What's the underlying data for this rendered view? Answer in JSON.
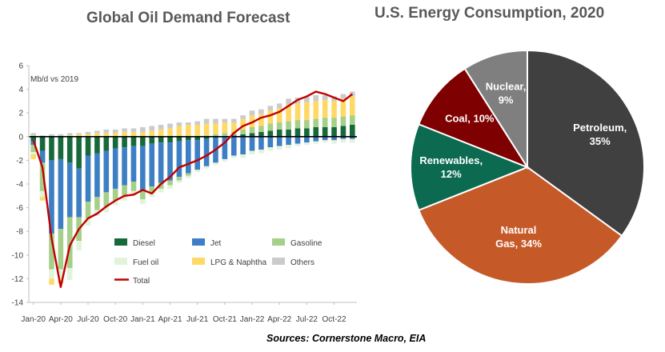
{
  "titles": {
    "left": "Global Oil Demand Forecast",
    "right": "U.S. Energy Consumption, 2020"
  },
  "sources": "Sources: Cornerstone Macro, EIA",
  "chart_data": [
    {
      "type": "bar",
      "stacked": true,
      "title": "Global Oil Demand Forecast",
      "unit_label": "Mb/d vs 2019",
      "ylim": [
        -14,
        6
      ],
      "yticks": [
        "6",
        "4",
        "2",
        "0",
        "-2",
        "-4",
        "-6",
        "-8",
        "-10",
        "-12",
        "-14"
      ],
      "x_tick_labels": [
        "Jan-20",
        "Apr-20",
        "Jul-20",
        "Oct-20",
        "Jan-21",
        "Apr-21",
        "Jul-21",
        "Oct-21",
        "Jan-22",
        "Apr-22",
        "Jul-22",
        "Oct-22"
      ],
      "x_tick_every": 3,
      "n_months": 36,
      "grid": false,
      "legend_position": "bottom-right",
      "colors": {
        "Diesel": "#17693a",
        "Jet": "#3d7fc4",
        "Gasoline": "#a6cf8a",
        "Fuel oil": "#e3f3da",
        "LPG & Naphtha": "#ffd966",
        "Others": "#cbcbcb",
        "Total": "#c00000"
      },
      "series": [
        {
          "name": "Diesel",
          "values": [
            -0.4,
            -1.2,
            -2.0,
            -1.9,
            -2.2,
            -2.7,
            -1.6,
            -1.4,
            -1.2,
            -1.0,
            -0.9,
            -0.8,
            -0.8,
            -0.6,
            -0.5,
            -0.5,
            -0.4,
            -0.3,
            -0.3,
            -0.2,
            -0.1,
            0.0,
            0.1,
            0.2,
            0.3,
            0.4,
            0.5,
            0.6,
            0.6,
            0.7,
            0.7,
            0.8,
            0.8,
            0.8,
            0.9,
            1.0
          ]
        },
        {
          "name": "Jet",
          "values": [
            -0.3,
            -1.0,
            -6.2,
            -5.9,
            -4.6,
            -4.1,
            -3.9,
            -3.7,
            -3.5,
            -3.4,
            -3.2,
            -3.0,
            -3.8,
            -3.6,
            -3.4,
            -3.2,
            -3.0,
            -2.8,
            -2.5,
            -2.3,
            -2.1,
            -1.9,
            -1.6,
            -1.5,
            -1.2,
            -1.1,
            -0.9,
            -0.8,
            -0.7,
            -0.6,
            -0.5,
            -0.4,
            -0.3,
            -0.3,
            -0.2,
            -0.2
          ]
        },
        {
          "name": "Gasoline",
          "values": [
            -0.6,
            -2.4,
            -3.0,
            -3.4,
            -4.3,
            -2.0,
            -1.4,
            -1.1,
            -1.2,
            -1.0,
            -0.9,
            -0.8,
            -0.7,
            -0.6,
            -0.5,
            -0.4,
            -0.3,
            -0.2,
            0.0,
            0.1,
            0.2,
            0.3,
            0.3,
            0.4,
            0.5,
            0.5,
            0.6,
            0.6,
            0.7,
            0.7,
            0.7,
            0.7,
            0.8,
            0.8,
            0.8,
            0.8
          ]
        },
        {
          "name": "Fuel oil",
          "values": [
            -0.2,
            -0.5,
            -0.8,
            -0.9,
            -1.0,
            -0.8,
            -0.6,
            -0.5,
            -0.5,
            -0.4,
            -0.4,
            -0.4,
            -0.4,
            -0.3,
            -0.3,
            -0.3,
            -0.2,
            -0.2,
            -0.2,
            -0.2,
            -0.2,
            -0.2,
            -0.2,
            -0.3,
            -0.3,
            -0.3,
            -0.3,
            -0.3,
            -0.3,
            -0.2,
            -0.2,
            -0.2,
            -0.2,
            -0.3,
            -0.3,
            -0.3
          ]
        },
        {
          "name": "LPG & Naphtha",
          "values": [
            -0.4,
            -0.3,
            -0.5,
            -0.3,
            0.1,
            0.2,
            0.2,
            0.3,
            0.3,
            0.3,
            0.4,
            0.4,
            0.4,
            0.5,
            0.6,
            0.7,
            0.9,
            1.0,
            1.0,
            1.0,
            0.9,
            0.9,
            0.8,
            0.9,
            1.0,
            1.0,
            1.1,
            1.2,
            1.4,
            1.4,
            1.5,
            1.5,
            1.5,
            1.4,
            1.5,
            1.6
          ]
        },
        {
          "name": "Others",
          "values": [
            0.3,
            0.1,
            0.2,
            0.2,
            0.2,
            0.1,
            0.2,
            0.2,
            0.3,
            0.3,
            0.3,
            0.3,
            0.4,
            0.4,
            0.4,
            0.4,
            0.3,
            0.2,
            0.3,
            0.4,
            0.4,
            0.3,
            0.3,
            0.3,
            0.4,
            0.4,
            0.4,
            0.4,
            0.5,
            0.5,
            0.5,
            0.5,
            0.4,
            0.4,
            0.4,
            0.4
          ]
        }
      ],
      "line": {
        "name": "Total",
        "values": [
          -0.3,
          -2.6,
          -8.6,
          -12.7,
          -9.2,
          -7.8,
          -6.9,
          -6.5,
          -5.9,
          -5.4,
          -5.0,
          -4.9,
          -4.5,
          -4.8,
          -4.0,
          -3.4,
          -2.6,
          -2.3,
          -2.0,
          -1.6,
          -1.1,
          -0.5,
          0.3,
          0.9,
          1.2,
          1.6,
          1.8,
          2.1,
          2.6,
          3.1,
          3.4,
          3.8,
          3.6,
          3.3,
          3.0,
          3.6
        ]
      }
    },
    {
      "type": "pie",
      "title": "U.S. Energy Consumption, 2020",
      "start_angle_deg": 0,
      "direction": "clockwise",
      "slices": [
        {
          "label": "Petroleum,",
          "pct_label": "35%",
          "value": 35,
          "color": "#404040"
        },
        {
          "label": "Natural Gas, 34%",
          "line1": "Natural",
          "line2": "Gas, 34%",
          "value": 34,
          "color": "#c55a28"
        },
        {
          "label": "Renewables,",
          "pct_label": "12%",
          "value": 12,
          "color": "#0b6a50"
        },
        {
          "label": "Coal, 10%",
          "value": 10,
          "color": "#7f0000"
        },
        {
          "label": "Nuclear,",
          "pct_label": "9%",
          "value": 9,
          "color": "#7f7f7f"
        }
      ]
    }
  ]
}
